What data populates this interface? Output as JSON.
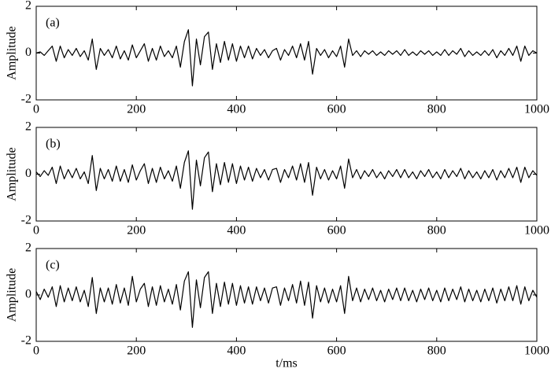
{
  "chart_data": [
    {
      "type": "line",
      "label": "(a)",
      "ylabel": "Amplitude",
      "xlim": [
        0,
        1000
      ],
      "ylim": [
        -2,
        2
      ],
      "xticks": [
        0,
        200,
        400,
        600,
        800,
        1000
      ],
      "yticks": [
        -2,
        0,
        2
      ],
      "color": "#000000",
      "x": [
        0,
        8,
        16,
        24,
        32,
        40,
        48,
        56,
        64,
        72,
        80,
        88,
        96,
        104,
        112,
        120,
        128,
        136,
        144,
        152,
        160,
        168,
        176,
        184,
        192,
        200,
        208,
        216,
        224,
        232,
        240,
        248,
        256,
        264,
        272,
        280,
        288,
        296,
        304,
        312,
        320,
        328,
        336,
        344,
        352,
        360,
        368,
        376,
        384,
        392,
        400,
        408,
        416,
        424,
        432,
        440,
        448,
        456,
        464,
        472,
        480,
        488,
        496,
        504,
        512,
        520,
        528,
        536,
        544,
        552,
        560,
        568,
        576,
        584,
        592,
        600,
        608,
        616,
        624,
        632,
        640,
        648,
        656,
        664,
        672,
        680,
        688,
        696,
        704,
        712,
        720,
        728,
        736,
        744,
        752,
        760,
        768,
        776,
        784,
        792,
        800,
        808,
        816,
        824,
        832,
        840,
        848,
        856,
        864,
        872,
        880,
        888,
        896,
        904,
        912,
        920,
        928,
        936,
        944,
        952,
        960,
        968,
        976,
        984,
        992,
        1000
      ],
      "values": [
        0,
        0.05,
        -0.1,
        0.1,
        0.3,
        -0.35,
        0.3,
        -0.2,
        0.15,
        -0.1,
        0.2,
        -0.15,
        0.1,
        -0.3,
        0.6,
        -0.7,
        0.2,
        -0.1,
        0.15,
        -0.2,
        0.3,
        -0.25,
        0.1,
        -0.3,
        0.35,
        -0.2,
        0.1,
        0.4,
        -0.35,
        0.2,
        -0.3,
        0.3,
        -0.15,
        0.1,
        -0.2,
        0.3,
        -0.6,
        0.5,
        1.0,
        -1.4,
        0.6,
        -0.5,
        0.7,
        0.9,
        -0.7,
        0.4,
        -0.4,
        0.5,
        -0.3,
        0.4,
        -0.35,
        0.3,
        -0.2,
        0.3,
        -0.25,
        0.2,
        -0.1,
        0.15,
        -0.2,
        0.1,
        0.2,
        -0.3,
        0.15,
        -0.1,
        0.3,
        -0.2,
        0.4,
        -0.3,
        0.5,
        -0.9,
        0.2,
        -0.1,
        0.15,
        -0.2,
        0.1,
        -0.15,
        0.3,
        -0.6,
        0.6,
        -0.1,
        0.1,
        -0.15,
        0.1,
        -0.05,
        0.1,
        -0.1,
        0.05,
        -0.1,
        0.1,
        -0.05,
        0.1,
        -0.1,
        0.15,
        -0.1,
        0.05,
        -0.1,
        0.1,
        -0.05,
        0.1,
        -0.1,
        0.05,
        -0.1,
        0.15,
        -0.1,
        0.1,
        -0.05,
        0.2,
        -0.15,
        0.1,
        -0.1,
        0.05,
        -0.1,
        0.1,
        -0.1,
        0.15,
        -0.2,
        0.1,
        -0.1,
        0.2,
        -0.1,
        0.3,
        -0.35,
        0.3,
        -0.1,
        0.1,
        0
      ]
    },
    {
      "type": "line",
      "label": "(b)",
      "ylabel": "Amplitude",
      "xlim": [
        0,
        1000
      ],
      "ylim": [
        -2,
        2
      ],
      "xticks": [
        0,
        200,
        400,
        600,
        800,
        1000
      ],
      "yticks": [
        -2,
        0,
        2
      ],
      "color": "#000000",
      "x": [
        0,
        8,
        16,
        24,
        32,
        40,
        48,
        56,
        64,
        72,
        80,
        88,
        96,
        104,
        112,
        120,
        128,
        136,
        144,
        152,
        160,
        168,
        176,
        184,
        192,
        200,
        208,
        216,
        224,
        232,
        240,
        248,
        256,
        264,
        272,
        280,
        288,
        296,
        304,
        312,
        320,
        328,
        336,
        344,
        352,
        360,
        368,
        376,
        384,
        392,
        400,
        408,
        416,
        424,
        432,
        440,
        448,
        456,
        464,
        472,
        480,
        488,
        496,
        504,
        512,
        520,
        528,
        536,
        544,
        552,
        560,
        568,
        576,
        584,
        592,
        600,
        608,
        616,
        624,
        632,
        640,
        648,
        656,
        664,
        672,
        680,
        688,
        696,
        704,
        712,
        720,
        728,
        736,
        744,
        752,
        760,
        768,
        776,
        784,
        792,
        800,
        808,
        816,
        824,
        832,
        840,
        848,
        856,
        864,
        872,
        880,
        888,
        896,
        904,
        912,
        920,
        928,
        936,
        944,
        952,
        960,
        968,
        976,
        984,
        992,
        1000
      ],
      "values": [
        0.1,
        -0.1,
        0.15,
        -0.05,
        0.3,
        -0.4,
        0.35,
        -0.2,
        0.2,
        -0.15,
        0.25,
        -0.2,
        0.1,
        -0.4,
        0.8,
        -0.7,
        0.25,
        -0.2,
        0.2,
        -0.3,
        0.35,
        -0.3,
        0.2,
        -0.35,
        0.4,
        -0.25,
        0.15,
        0.45,
        -0.4,
        0.25,
        -0.35,
        0.3,
        -0.2,
        0.15,
        -0.3,
        0.35,
        -0.6,
        0.5,
        1.0,
        -1.5,
        0.6,
        -0.5,
        0.7,
        0.95,
        -0.75,
        0.45,
        -0.45,
        0.5,
        -0.35,
        0.45,
        -0.4,
        0.35,
        -0.25,
        0.3,
        -0.3,
        0.25,
        -0.15,
        0.2,
        -0.25,
        0.2,
        0.25,
        -0.35,
        0.2,
        -0.15,
        0.35,
        -0.25,
        0.45,
        -0.35,
        0.5,
        -0.9,
        0.3,
        -0.2,
        0.2,
        -0.25,
        0.15,
        -0.2,
        0.35,
        -0.6,
        0.65,
        -0.15,
        0.2,
        -0.2,
        0.15,
        -0.1,
        0.2,
        -0.15,
        0.1,
        -0.2,
        0.15,
        -0.1,
        0.2,
        -0.15,
        0.2,
        -0.15,
        0.1,
        -0.2,
        0.15,
        -0.1,
        0.2,
        -0.15,
        0.1,
        -0.2,
        0.2,
        -0.15,
        0.15,
        -0.1,
        0.25,
        -0.2,
        0.15,
        -0.15,
        0.1,
        -0.2,
        0.15,
        -0.15,
        0.2,
        -0.25,
        0.15,
        -0.15,
        0.25,
        -0.15,
        0.3,
        -0.35,
        0.3,
        -0.15,
        0.15,
        -0.05
      ]
    },
    {
      "type": "line",
      "label": "(c)",
      "ylabel": "Amplitude",
      "xlabel": "t/ms",
      "xlim": [
        0,
        1000
      ],
      "ylim": [
        -2,
        2
      ],
      "xticks": [
        0,
        200,
        400,
        600,
        800,
        1000
      ],
      "yticks": [
        -2,
        0,
        2
      ],
      "color": "#000000",
      "x": [
        0,
        8,
        16,
        24,
        32,
        40,
        48,
        56,
        64,
        72,
        80,
        88,
        96,
        104,
        112,
        120,
        128,
        136,
        144,
        152,
        160,
        168,
        176,
        184,
        192,
        200,
        208,
        216,
        224,
        232,
        240,
        248,
        256,
        264,
        272,
        280,
        288,
        296,
        304,
        312,
        320,
        328,
        336,
        344,
        352,
        360,
        368,
        376,
        384,
        392,
        400,
        408,
        416,
        424,
        432,
        440,
        448,
        456,
        464,
        472,
        480,
        488,
        496,
        504,
        512,
        520,
        528,
        536,
        544,
        552,
        560,
        568,
        576,
        584,
        592,
        600,
        608,
        616,
        624,
        632,
        640,
        648,
        656,
        664,
        672,
        680,
        688,
        696,
        704,
        712,
        720,
        728,
        736,
        744,
        752,
        760,
        768,
        776,
        784,
        792,
        800,
        808,
        816,
        824,
        832,
        840,
        848,
        856,
        864,
        872,
        880,
        888,
        896,
        904,
        912,
        920,
        928,
        936,
        944,
        952,
        960,
        968,
        976,
        984,
        992,
        1000
      ],
      "values": [
        0.15,
        -0.2,
        0.25,
        -0.1,
        0.35,
        -0.5,
        0.4,
        -0.3,
        0.3,
        -0.25,
        0.35,
        -0.3,
        0.2,
        -0.5,
        0.75,
        -0.8,
        0.3,
        -0.3,
        0.3,
        -0.4,
        0.45,
        -0.35,
        0.3,
        -0.45,
        0.8,
        -0.3,
        0.25,
        0.5,
        -0.5,
        0.35,
        -0.45,
        0.4,
        -0.3,
        0.25,
        -0.4,
        0.45,
        -0.65,
        0.6,
        1.0,
        -1.4,
        0.65,
        -0.55,
        0.75,
        1.0,
        -0.8,
        0.5,
        -0.5,
        0.55,
        -0.4,
        0.5,
        -0.45,
        0.4,
        -0.35,
        0.35,
        -0.4,
        0.35,
        -0.25,
        0.3,
        -0.35,
        0.3,
        0.35,
        -0.45,
        0.3,
        -0.25,
        0.45,
        -0.35,
        0.6,
        -0.45,
        0.55,
        -1.0,
        0.4,
        -0.3,
        0.3,
        -0.35,
        0.25,
        -0.3,
        0.4,
        -0.8,
        0.8,
        -0.25,
        0.3,
        -0.3,
        0.25,
        -0.2,
        0.3,
        -0.25,
        0.2,
        -0.3,
        0.25,
        -0.2,
        0.3,
        -0.25,
        0.3,
        -0.25,
        0.2,
        -0.3,
        0.25,
        -0.2,
        0.3,
        -0.25,
        0.2,
        -0.3,
        0.3,
        -0.25,
        0.25,
        -0.2,
        0.35,
        -0.3,
        0.25,
        -0.25,
        0.2,
        -0.3,
        0.25,
        -0.25,
        0.3,
        -0.35,
        0.25,
        -0.25,
        0.35,
        -0.25,
        0.4,
        -0.4,
        0.35,
        -0.25,
        0.2,
        -0.1
      ]
    }
  ]
}
